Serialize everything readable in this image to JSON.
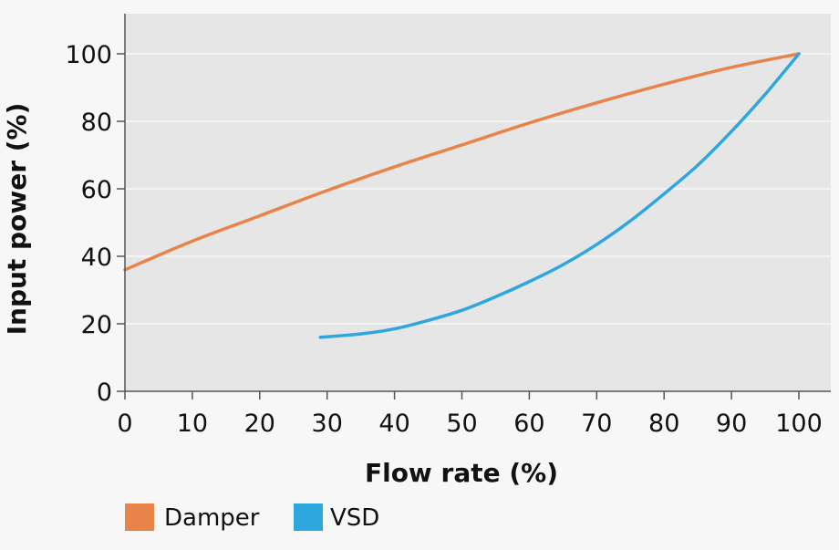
{
  "chart_data": {
    "type": "line",
    "title": "",
    "xlabel": "Flow rate (%)",
    "ylabel": "Input power (%)",
    "xlim": [
      0,
      100
    ],
    "ylim": [
      0,
      110
    ],
    "xticks": [
      0,
      10,
      20,
      30,
      40,
      50,
      60,
      70,
      80,
      90,
      100
    ],
    "yticks": [
      0,
      20,
      40,
      60,
      80,
      100
    ],
    "grid": "horizontal",
    "legend_position": "bottom-left",
    "series": [
      {
        "name": "Damper",
        "color": "#e8834a",
        "x": [
          0,
          10,
          20,
          30,
          40,
          50,
          60,
          70,
          80,
          90,
          100
        ],
        "y": [
          36,
          44.5,
          52,
          59.5,
          66.5,
          73,
          79.5,
          85.5,
          91,
          96,
          100
        ]
      },
      {
        "name": "VSD",
        "color": "#2ea6de",
        "x": [
          29,
          35,
          40,
          45,
          50,
          55,
          60,
          65,
          70,
          75,
          80,
          85,
          90,
          95,
          100
        ],
        "y": [
          16,
          17,
          18.5,
          21,
          24,
          28,
          32.5,
          37.5,
          43.5,
          50.5,
          58.5,
          67,
          77,
          88,
          100
        ]
      }
    ]
  }
}
